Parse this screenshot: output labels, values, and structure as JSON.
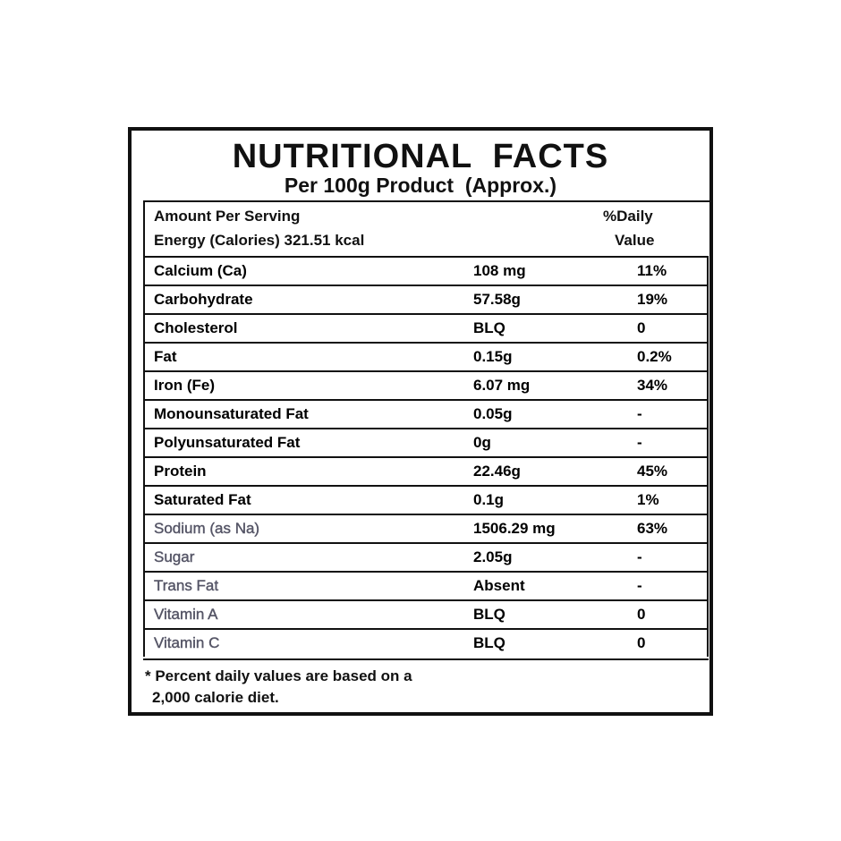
{
  "header": {
    "title": "NUTRITIONAL  FACTS",
    "subtitle": "Per 100g Product  (Approx.)"
  },
  "intro": {
    "lines": [
      "Amount Per Serving",
      "Energy (Calories) 321.51 kcal"
    ],
    "dv_heading": [
      "%Daily",
      "Value"
    ]
  },
  "table": {
    "rows": [
      [
        "Calcium (Ca)",
        "108 mg",
        "11%"
      ],
      [
        "Carbohydrate",
        "57.58g",
        "19%"
      ],
      [
        "Cholesterol",
        "BLQ",
        "0"
      ],
      [
        "Fat",
        "0.15g",
        "0.2%"
      ],
      [
        "Iron (Fe)",
        "6.07 mg",
        "34%"
      ],
      [
        "Monounsaturated Fat",
        "0.05g",
        "-"
      ],
      [
        "Polyunsaturated Fat",
        "0g",
        "-"
      ],
      [
        "Protein",
        "22.46g",
        "45%"
      ],
      [
        "Saturated Fat",
        "0.1g",
        "1%"
      ],
      [
        "Sodium (as Na)",
        "1506.29 mg",
        "63%"
      ],
      [
        "Sugar",
        "2.05g",
        "-"
      ],
      [
        "Trans Fat",
        "Absent",
        "-"
      ],
      [
        "Vitamin A",
        "BLQ",
        "0"
      ],
      [
        "Vitamin C",
        "BLQ",
        "0"
      ]
    ]
  },
  "footnote": [
    "* Percent daily values are based on a",
    "2,000 calorie diet."
  ]
}
